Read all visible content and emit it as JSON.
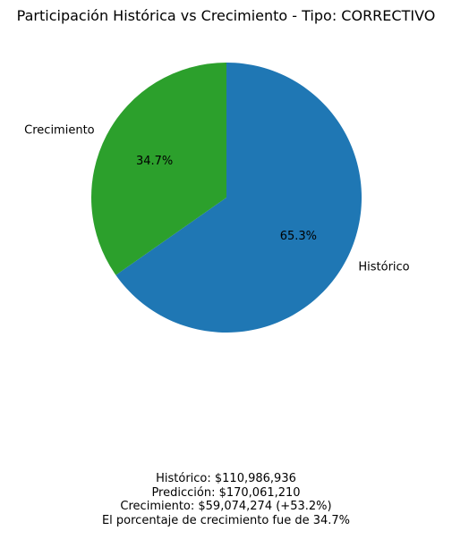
{
  "chart_data": {
    "type": "pie",
    "title": "Participación Histórica vs Crecimiento - Tipo: CORRECTIVO",
    "categories": [
      "Histórico",
      "Crecimiento"
    ],
    "values": [
      110986936,
      59074274
    ],
    "percent_labels": [
      "65.3%",
      "34.7%"
    ],
    "colors": [
      "#1f77b4",
      "#2ca02c"
    ],
    "start_angle_deg": 90,
    "direction": "clockwise"
  },
  "summary": {
    "line1": "Histórico: $110,986,936",
    "line2": "Predicción: $170,061,210",
    "line3": "Crecimiento: $59,074,274 (+53.2%)",
    "line4": "El porcentaje de crecimiento fue de 34.7%"
  }
}
